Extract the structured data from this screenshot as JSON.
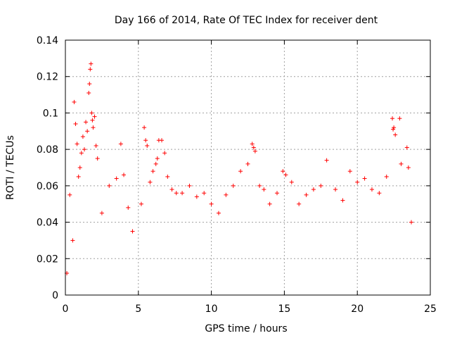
{
  "chart_data": {
    "type": "scatter",
    "title": "Day 166 of 2014, Rate Of TEC Index for receiver dent",
    "xlabel": "GPS time / hours",
    "ylabel": "ROTI / TECUs",
    "xlim": [
      0,
      25
    ],
    "ylim": [
      0,
      0.14
    ],
    "xticks": [
      0,
      5,
      10,
      15,
      20,
      25
    ],
    "xtick_labels": [
      "0",
      "5",
      "10",
      "15",
      "20",
      "25"
    ],
    "yticks": [
      0,
      0.02,
      0.04,
      0.06,
      0.08,
      0.1,
      0.12,
      0.14
    ],
    "ytick_labels": [
      "0",
      "0.02",
      "0.04",
      "0.06",
      "0.08",
      "0.1",
      "0.12",
      "0.14"
    ],
    "grid": true,
    "marker": "plus",
    "color": "#ff0000",
    "series": [
      {
        "name": "ROTI",
        "points": [
          [
            0.1,
            0.012
          ],
          [
            0.3,
            0.055
          ],
          [
            0.5,
            0.03
          ],
          [
            0.6,
            0.106
          ],
          [
            0.7,
            0.094
          ],
          [
            0.8,
            0.083
          ],
          [
            0.9,
            0.065
          ],
          [
            1.0,
            0.07
          ],
          [
            1.1,
            0.078
          ],
          [
            1.2,
            0.087
          ],
          [
            1.3,
            0.08
          ],
          [
            1.4,
            0.095
          ],
          [
            1.5,
            0.09
          ],
          [
            1.6,
            0.111
          ],
          [
            1.65,
            0.116
          ],
          [
            1.7,
            0.124
          ],
          [
            1.75,
            0.127
          ],
          [
            1.8,
            0.1
          ],
          [
            1.85,
            0.096
          ],
          [
            1.9,
            0.092
          ],
          [
            2.0,
            0.098
          ],
          [
            2.1,
            0.082
          ],
          [
            2.2,
            0.075
          ],
          [
            2.5,
            0.045
          ],
          [
            3.0,
            0.06
          ],
          [
            3.5,
            0.064
          ],
          [
            3.8,
            0.083
          ],
          [
            4.0,
            0.066
          ],
          [
            4.3,
            0.048
          ],
          [
            4.6,
            0.035
          ],
          [
            5.2,
            0.05
          ],
          [
            5.4,
            0.092
          ],
          [
            5.5,
            0.085
          ],
          [
            5.6,
            0.082
          ],
          [
            5.8,
            0.062
          ],
          [
            6.0,
            0.068
          ],
          [
            6.2,
            0.072
          ],
          [
            6.3,
            0.075
          ],
          [
            6.4,
            0.085
          ],
          [
            6.6,
            0.085
          ],
          [
            6.8,
            0.078
          ],
          [
            7.0,
            0.065
          ],
          [
            7.3,
            0.058
          ],
          [
            7.6,
            0.056
          ],
          [
            8.0,
            0.056
          ],
          [
            8.5,
            0.06
          ],
          [
            9.0,
            0.054
          ],
          [
            9.5,
            0.056
          ],
          [
            10.0,
            0.05
          ],
          [
            10.5,
            0.045
          ],
          [
            11.0,
            0.055
          ],
          [
            11.5,
            0.06
          ],
          [
            12.0,
            0.068
          ],
          [
            12.5,
            0.072
          ],
          [
            12.8,
            0.083
          ],
          [
            12.9,
            0.081
          ],
          [
            13.0,
            0.079
          ],
          [
            13.3,
            0.06
          ],
          [
            13.6,
            0.058
          ],
          [
            14.0,
            0.05
          ],
          [
            14.5,
            0.056
          ],
          [
            14.9,
            0.068
          ],
          [
            15.1,
            0.066
          ],
          [
            15.5,
            0.062
          ],
          [
            16.0,
            0.05
          ],
          [
            16.5,
            0.055
          ],
          [
            17.0,
            0.058
          ],
          [
            17.5,
            0.06
          ],
          [
            17.9,
            0.074
          ],
          [
            18.5,
            0.058
          ],
          [
            19.0,
            0.052
          ],
          [
            19.5,
            0.068
          ],
          [
            20.0,
            0.062
          ],
          [
            20.5,
            0.064
          ],
          [
            21.0,
            0.058
          ],
          [
            21.5,
            0.056
          ],
          [
            22.0,
            0.065
          ],
          [
            22.4,
            0.097
          ],
          [
            22.45,
            0.091
          ],
          [
            22.5,
            0.092
          ],
          [
            22.6,
            0.088
          ],
          [
            22.9,
            0.097
          ],
          [
            23.0,
            0.072
          ],
          [
            23.4,
            0.081
          ],
          [
            23.5,
            0.07
          ],
          [
            23.7,
            0.04
          ]
        ]
      }
    ]
  }
}
